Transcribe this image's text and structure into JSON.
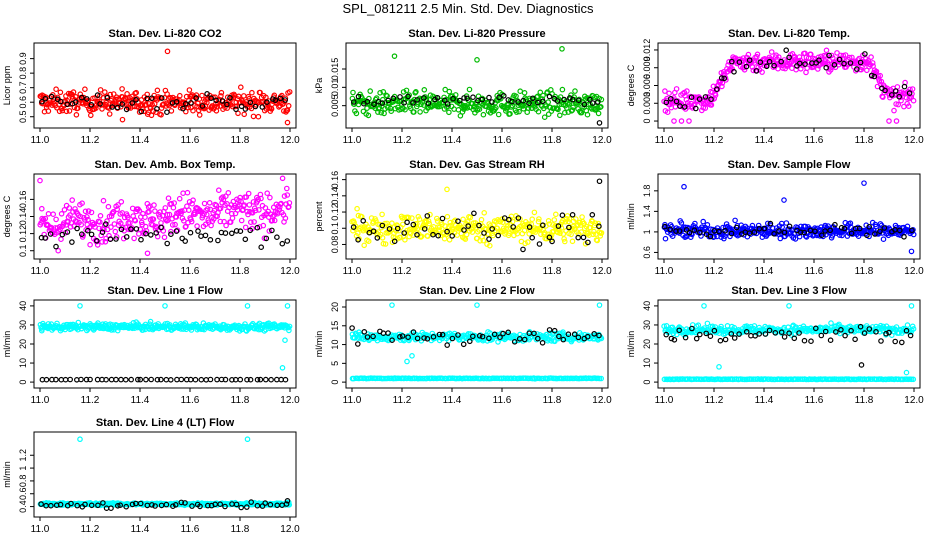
{
  "page_title": "SPL_081211  2.5 Min. Std. Dev. Diagnostics",
  "chart_data": [
    {
      "type": "scatter",
      "title": "Stan. Dev. Li-820 CO2",
      "ylabel": "Licor ppm",
      "xlim": [
        11.0,
        12.0
      ],
      "ylim": [
        0.45,
        0.98
      ],
      "xticks": [
        11.0,
        11.2,
        11.4,
        11.6,
        11.8,
        12.0
      ],
      "yticks": [
        0.5,
        0.6,
        0.7,
        0.8,
        0.9
      ],
      "series": [
        {
          "name": "band",
          "color": "#ff0000",
          "center": 0.6,
          "spread": 0.055,
          "n": 360
        },
        {
          "name": "overlay",
          "color": "#000000",
          "center": 0.6,
          "spread": 0.045,
          "n": 50
        }
      ],
      "outliers": [
        {
          "x": 11.51,
          "y": 0.95,
          "color": "#ff0000"
        },
        {
          "x": 11.99,
          "y": 0.46,
          "color": "#ff0000"
        },
        {
          "x": 11.33,
          "y": 0.48,
          "color": "#ff0000"
        }
      ]
    },
    {
      "type": "scatter",
      "title": "Stan. Dev. Li-820 Pressure",
      "ylabel": "kPa",
      "xlim": [
        11.0,
        12.0
      ],
      "ylim": [
        0.0,
        0.021
      ],
      "xticks": [
        11.0,
        11.2,
        11.4,
        11.6,
        11.8,
        12.0
      ],
      "yticks": [
        0.005,
        0.01,
        0.015
      ],
      "series": [
        {
          "name": "band",
          "color": "#00bb00",
          "center": 0.0055,
          "spread": 0.0022,
          "n": 360
        },
        {
          "name": "overlay",
          "color": "#000000",
          "center": 0.0065,
          "spread": 0.0008,
          "n": 50
        }
      ],
      "outliers": [
        {
          "x": 11.17,
          "y": 0.0185,
          "color": "#00bb00"
        },
        {
          "x": 11.5,
          "y": 0.0175,
          "color": "#00bb00"
        },
        {
          "x": 11.84,
          "y": 0.0205,
          "color": "#00bb00"
        },
        {
          "x": 11.99,
          "y": 0.0003,
          "color": "#000000"
        }
      ]
    },
    {
      "type": "scatter",
      "title": "Stan. Dev. Li-820 Temp.",
      "ylabel": "degrees C",
      "xlim": [
        11.0,
        12.0
      ],
      "ylim": [
        -0.0005,
        0.0125
      ],
      "xticks": [
        11.0,
        11.2,
        11.4,
        11.6,
        11.8,
        12.0
      ],
      "yticks": [
        0.0,
        0.003,
        0.006,
        0.009,
        0.012
      ],
      "series": [
        {
          "name": "band",
          "color": "#ff00ff",
          "center": 0.01,
          "spread": 0.0012,
          "n": 360
        },
        {
          "name": "overlay",
          "color": "#000000",
          "center": 0.01,
          "spread": 0.001,
          "n": 50
        }
      ],
      "outliers": [
        {
          "x": 11.04,
          "y": 0.0,
          "color": "#ff00ff"
        },
        {
          "x": 11.07,
          "y": 0.0,
          "color": "#ff00ff"
        },
        {
          "x": 11.1,
          "y": 0.0,
          "color": "#ff00ff"
        },
        {
          "x": 11.9,
          "y": 0.0,
          "color": "#ff00ff"
        },
        {
          "x": 11.93,
          "y": 0.0,
          "color": "#ff00ff"
        }
      ]
    },
    {
      "type": "scatter",
      "title": "Stan. Dev. Amb. Box Temp.",
      "ylabel": "degrees C",
      "xlim": [
        11.0,
        12.0
      ],
      "ylim": [
        0.095,
        0.185
      ],
      "xticks": [
        11.0,
        11.2,
        11.4,
        11.6,
        11.8,
        12.0
      ],
      "yticks": [
        0.1,
        0.12,
        0.14,
        0.16
      ],
      "series": [
        {
          "name": "band",
          "color": "#ff00ff",
          "center": 0.14,
          "spread": 0.016,
          "n": 360
        },
        {
          "name": "overlay",
          "color": "#000000",
          "center": 0.117,
          "spread": 0.009,
          "n": 50
        }
      ],
      "outliers": [
        {
          "x": 11.0,
          "y": 0.182,
          "color": "#ff00ff"
        },
        {
          "x": 11.43,
          "y": 0.097,
          "color": "#ff00ff"
        }
      ]
    },
    {
      "type": "scatter",
      "title": "Stan. Dev. Gas Stream RH",
      "ylabel": "percent",
      "xlim": [
        11.0,
        12.0
      ],
      "ylim": [
        0.067,
        0.162
      ],
      "xticks": [
        11.0,
        11.2,
        11.4,
        11.6,
        11.8,
        12.0
      ],
      "yticks": [
        0.08,
        0.1,
        0.12,
        0.14,
        0.16
      ],
      "series": [
        {
          "name": "band",
          "color": "#ffff00",
          "center": 0.1,
          "spread": 0.012,
          "n": 360
        },
        {
          "name": "overlay",
          "color": "#000000",
          "center": 0.1,
          "spread": 0.014,
          "n": 50
        }
      ],
      "outliers": [
        {
          "x": 11.99,
          "y": 0.158,
          "color": "#000000"
        },
        {
          "x": 11.38,
          "y": 0.148,
          "color": "#ffff00"
        }
      ]
    },
    {
      "type": "scatter",
      "title": "Stan. Dev. Sample Flow",
      "ylabel": "ml/min",
      "xlim": [
        11.0,
        12.0
      ],
      "ylim": [
        0.55,
        2.05
      ],
      "xticks": [
        11.0,
        11.2,
        11.4,
        11.6,
        11.8,
        12.0
      ],
      "yticks": [
        0.6,
        1.0,
        1.4,
        1.8
      ],
      "series": [
        {
          "name": "band",
          "color": "#0000ff",
          "center": 1.02,
          "spread": 0.1,
          "n": 360
        },
        {
          "name": "overlay",
          "color": "#000000",
          "center": 1.02,
          "spread": 0.08,
          "n": 50
        }
      ],
      "outliers": [
        {
          "x": 11.08,
          "y": 1.88,
          "color": "#0000ff"
        },
        {
          "x": 11.8,
          "y": 1.95,
          "color": "#0000ff"
        },
        {
          "x": 11.48,
          "y": 1.62,
          "color": "#0000ff"
        },
        {
          "x": 11.99,
          "y": 0.62,
          "color": "#0000ff"
        }
      ]
    },
    {
      "type": "scatter",
      "title": "Stan. Dev. Line 1 Flow",
      "ylabel": "ml/min",
      "xlim": [
        11.0,
        12.0
      ],
      "ylim": [
        -1.0,
        41.0
      ],
      "xticks": [
        11.0,
        11.2,
        11.4,
        11.6,
        11.8,
        12.0
      ],
      "yticks": [
        0,
        10,
        20,
        30,
        40
      ],
      "series": [
        {
          "name": "band",
          "color": "#00ffff",
          "center": 29.0,
          "spread": 1.3,
          "n": 360
        },
        {
          "name": "overlay",
          "color": "#000000",
          "center": 1.3,
          "spread": 0.05,
          "n": 50
        }
      ],
      "outliers": [
        {
          "x": 11.16,
          "y": 40.0,
          "color": "#00ffff"
        },
        {
          "x": 11.5,
          "y": 40.0,
          "color": "#00ffff"
        },
        {
          "x": 11.83,
          "y": 40.0,
          "color": "#00ffff"
        },
        {
          "x": 11.99,
          "y": 40.0,
          "color": "#00ffff"
        },
        {
          "x": 11.97,
          "y": 7.5,
          "color": "#00ffff"
        },
        {
          "x": 11.98,
          "y": 22.0,
          "color": "#00ffff"
        }
      ]
    },
    {
      "type": "scatter",
      "title": "Stan. Dev. Line 2 Flow",
      "ylabel": "ml/min",
      "xlim": [
        11.0,
        12.0
      ],
      "ylim": [
        -0.5,
        20.8
      ],
      "xticks": [
        11.0,
        11.2,
        11.4,
        11.6,
        11.8,
        12.0
      ],
      "yticks": [
        0,
        5,
        10,
        15,
        20
      ],
      "series": [
        {
          "name": "band",
          "color": "#00ffff",
          "center": 12.0,
          "spread": 0.8,
          "n": 300
        },
        {
          "name": "floor",
          "color": "#00ffff",
          "center": 1.0,
          "spread": 0.06,
          "n": 160
        },
        {
          "name": "overlay",
          "color": "#000000",
          "center": 12.2,
          "spread": 1.5,
          "n": 50
        }
      ],
      "outliers": [
        {
          "x": 11.16,
          "y": 20.5,
          "color": "#00ffff"
        },
        {
          "x": 11.5,
          "y": 20.5,
          "color": "#00ffff"
        },
        {
          "x": 11.99,
          "y": 20.5,
          "color": "#00ffff"
        },
        {
          "x": 11.22,
          "y": 5.5,
          "color": "#00ffff"
        },
        {
          "x": 11.24,
          "y": 7.0,
          "color": "#00ffff"
        }
      ]
    },
    {
      "type": "scatter",
      "title": "Stan. Dev. Line 3 Flow",
      "ylabel": "ml/min",
      "xlim": [
        11.0,
        12.0
      ],
      "ylim": [
        -1.0,
        41.0
      ],
      "xticks": [
        11.0,
        11.2,
        11.4,
        11.6,
        11.8,
        12.0
      ],
      "yticks": [
        0,
        10,
        20,
        30,
        40
      ],
      "series": [
        {
          "name": "band",
          "color": "#00ffff",
          "center": 27.5,
          "spread": 1.6,
          "n": 300
        },
        {
          "name": "floor",
          "color": "#00ffff",
          "center": 1.5,
          "spread": 0.1,
          "n": 160
        },
        {
          "name": "overlay",
          "color": "#000000",
          "center": 24.5,
          "spread": 3.5,
          "n": 50
        }
      ],
      "outliers": [
        {
          "x": 11.16,
          "y": 40.0,
          "color": "#00ffff"
        },
        {
          "x": 11.5,
          "y": 40.0,
          "color": "#00ffff"
        },
        {
          "x": 11.99,
          "y": 40.0,
          "color": "#00ffff"
        },
        {
          "x": 11.22,
          "y": 8.0,
          "color": "#00ffff"
        },
        {
          "x": 11.97,
          "y": 5.0,
          "color": "#00ffff"
        },
        {
          "x": 11.79,
          "y": 9.0,
          "color": "#000000"
        }
      ]
    },
    {
      "type": "scatter",
      "title": "Stan. Dev. Line 4 (LT) Flow",
      "ylabel": "ml/min",
      "xlim": [
        11.0,
        12.0
      ],
      "ylim": [
        0.3,
        1.5
      ],
      "xticks": [
        11.0,
        11.2,
        11.4,
        11.6,
        11.8,
        12.0
      ],
      "yticks": [
        0.4,
        0.6,
        0.8,
        1.0,
        1.2
      ],
      "series": [
        {
          "name": "band",
          "color": "#00ffff",
          "center": 0.44,
          "spread": 0.012,
          "n": 360
        },
        {
          "name": "overlay",
          "color": "#000000",
          "center": 0.42,
          "spread": 0.035,
          "n": 50
        }
      ],
      "outliers": [
        {
          "x": 11.16,
          "y": 1.45,
          "color": "#00ffff"
        },
        {
          "x": 11.83,
          "y": 1.45,
          "color": "#00ffff"
        },
        {
          "x": 11.99,
          "y": 0.49,
          "color": "#000000"
        }
      ]
    }
  ]
}
